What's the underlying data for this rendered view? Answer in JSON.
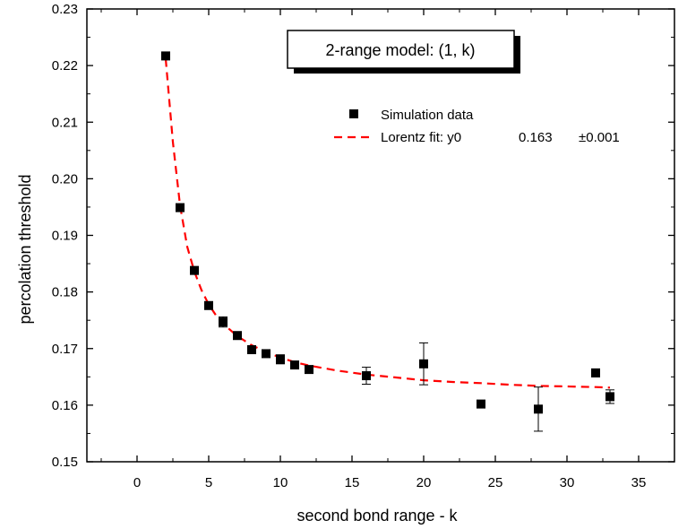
{
  "chart_data": {
    "type": "scatter",
    "title": "2-range model: (1, k)",
    "xlabel": "second bond range - k",
    "ylabel": "percolation threshold",
    "xlim": [
      -3.5,
      37.5
    ],
    "ylim": [
      0.15,
      0.23
    ],
    "xticks": [
      0,
      5,
      10,
      15,
      20,
      25,
      30,
      35
    ],
    "yticks": [
      0.15,
      0.16,
      0.17,
      0.18,
      0.19,
      0.2,
      0.21,
      0.22,
      0.23
    ],
    "xtick_labels": [
      "0",
      "5",
      "10",
      "15",
      "20",
      "25",
      "30",
      "35"
    ],
    "ytick_labels": [
      "0.15",
      "0.16",
      "0.17",
      "0.18",
      "0.19",
      "0.20",
      "0.21",
      "0.22",
      "0.23"
    ],
    "grid": false,
    "legend_position": "top-right",
    "series": [
      {
        "name": "Simulation data",
        "kind": "scatter",
        "marker": "square",
        "color": "#000000",
        "x": [
          2,
          3,
          4,
          5,
          6,
          7,
          8,
          9,
          10,
          11,
          12,
          16,
          20,
          24,
          28,
          32,
          33
        ],
        "y": [
          0.2217,
          0.1949,
          0.1838,
          0.1776,
          0.1747,
          0.1723,
          0.1698,
          0.1691,
          0.1681,
          0.1671,
          0.1663,
          0.1652,
          0.1673,
          0.1602,
          0.1593,
          0.1657,
          0.1615
        ],
        "yerr": [
          0.0002,
          0.0002,
          0.0002,
          0.0002,
          0.0009,
          0.0002,
          0.0004,
          0.0004,
          0.0008,
          0.0003,
          0.0002,
          0.0015,
          0.0037,
          0.0002,
          0.0039,
          0.0007,
          0.0012
        ]
      },
      {
        "name": "Lorentz fit: y0",
        "kind": "line",
        "style": "dashed",
        "color": "#ff0000",
        "param_value": "0.163",
        "param_error": "±0.001",
        "x": [
          2,
          2.5,
          3,
          3.5,
          4,
          4.5,
          5,
          5.5,
          6,
          7,
          8,
          9,
          10,
          11,
          12,
          14,
          16,
          18,
          20,
          22,
          24,
          26,
          28,
          30,
          32,
          33
        ],
        "y": [
          0.2212,
          0.2065,
          0.1953,
          0.188,
          0.1836,
          0.1803,
          0.1778,
          0.1759,
          0.1744,
          0.1722,
          0.1706,
          0.1694,
          0.1684,
          0.1676,
          0.167,
          0.1661,
          0.1654,
          0.1649,
          0.1644,
          0.1641,
          0.1639,
          0.1636,
          0.1634,
          0.1633,
          0.1632,
          0.1631
        ]
      }
    ]
  }
}
